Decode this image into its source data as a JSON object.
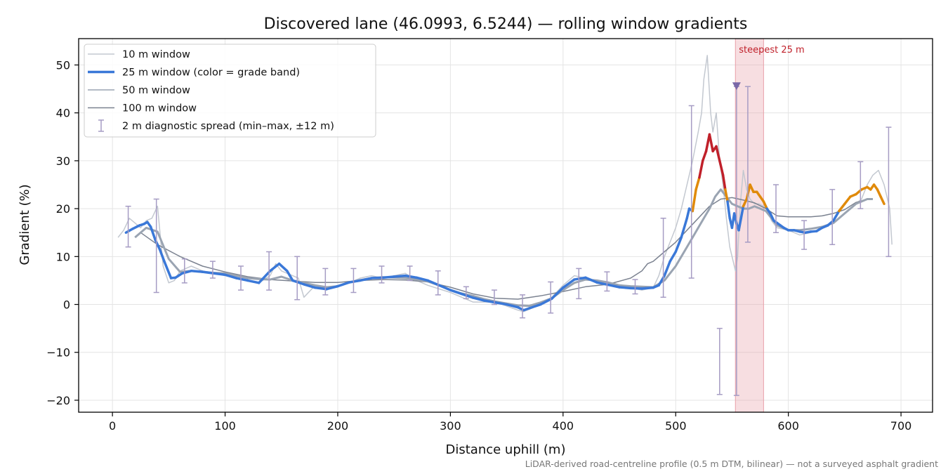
{
  "chart_data": {
    "type": "line",
    "title": "Discovered lane (46.0993, 6.5244) — rolling window gradients",
    "xlabel": "Distance uphill (m)",
    "ylabel": "Gradient (%)",
    "footnote": "LiDAR-derived road-centreline profile (0.5 m DTM, bilinear) — not a surveyed asphalt gradient",
    "xlim": [
      -30,
      728
    ],
    "ylim": [
      -22.5,
      55.5
    ],
    "xticks": [
      0,
      100,
      200,
      300,
      400,
      500,
      600,
      700
    ],
    "yticks": [
      -20,
      -10,
      0,
      10,
      20,
      30,
      40,
      50
    ],
    "grid": true,
    "legend_position": "top-left",
    "colors": {
      "w10": "#c3c8d0",
      "w50": "#9aa4b2",
      "w100": "#7b8290",
      "band_easy": "#3a78d8",
      "band_mid": "#e08a0a",
      "band_steep": "#c0202a",
      "errorbar": "#a69cc4",
      "marker": "#7a68a8",
      "highlight": "#e8a0a8"
    },
    "highlight": {
      "x0": 553,
      "x1": 578,
      "label": "steepest 25 m",
      "marker_x": 554,
      "marker_y": 45.5
    },
    "legend": [
      {
        "key": "w10",
        "label": "10 m window"
      },
      {
        "key": "w25",
        "label": "25 m window (color = grade band)"
      },
      {
        "key": "w50",
        "label": "50 m window"
      },
      {
        "key": "w100",
        "label": "100 m window"
      },
      {
        "key": "err",
        "label": "2 m diagnostic spread (min–max, ±12 m)"
      }
    ],
    "series": [
      {
        "name": "10 m window",
        "key": "w10",
        "x": [
          5,
          10,
          15,
          20,
          25,
          30,
          35,
          40,
          45,
          50,
          55,
          60,
          65,
          70,
          80,
          90,
          100,
          110,
          120,
          130,
          140,
          145,
          150,
          160,
          165,
          170,
          180,
          190,
          200,
          210,
          220,
          230,
          240,
          250,
          260,
          270,
          280,
          300,
          320,
          340,
          360,
          365,
          370,
          380,
          390,
          400,
          410,
          420,
          430,
          440,
          450,
          460,
          470,
          480,
          485,
          490,
          495,
          500,
          505,
          510,
          515,
          520,
          523,
          525,
          528,
          531,
          533,
          536,
          539,
          542,
          545,
          548,
          551,
          553,
          555,
          557,
          560,
          563,
          566,
          570,
          574,
          578,
          582,
          585,
          590,
          600,
          610,
          620,
          630,
          640,
          650,
          660,
          665,
          670,
          675,
          680,
          685,
          690,
          692
        ],
        "y": [
          14,
          15.5,
          18,
          17,
          16,
          17.5,
          18,
          20.5,
          8,
          4.5,
          5,
          7,
          7.5,
          8,
          7,
          6.5,
          6,
          5.5,
          5,
          4.5,
          6,
          8.5,
          7,
          6,
          5.5,
          1.5,
          4,
          3,
          4,
          4.5,
          5.5,
          6,
          5.5,
          6,
          6.5,
          5,
          4,
          2.5,
          0.5,
          0.5,
          -1.2,
          -1.5,
          -1,
          0,
          1.5,
          4,
          6,
          5.5,
          4.5,
          4,
          3.5,
          3.5,
          3,
          3.5,
          6,
          10,
          13,
          16,
          20,
          25,
          30,
          36,
          40,
          47,
          52,
          40,
          36,
          40,
          30,
          25,
          18,
          12,
          9,
          7,
          10,
          20,
          28,
          24,
          22,
          21,
          21,
          20.5,
          19.5,
          17.5,
          16,
          15.5,
          14.5,
          15,
          16,
          17,
          19,
          21,
          22,
          25,
          27,
          28,
          25,
          20,
          12.5
        ]
      },
      {
        "name": "25 m window",
        "key": "w25",
        "x": [
          12,
          18,
          24,
          28,
          31,
          34,
          38,
          42,
          46,
          52,
          56,
          62,
          70,
          80,
          90,
          100,
          110,
          120,
          130,
          140,
          148,
          155,
          160,
          170,
          180,
          190,
          200,
          210,
          220,
          230,
          240,
          250,
          260,
          270,
          280,
          290,
          300,
          310,
          320,
          330,
          340,
          350,
          360,
          365,
          370,
          380,
          390,
          400,
          410,
          420,
          430,
          440,
          450,
          460,
          470,
          480,
          485,
          490,
          495,
          500,
          505,
          510,
          512,
          515,
          518,
          521,
          524,
          527,
          530,
          533,
          536,
          539,
          542,
          544,
          546,
          548,
          550,
          552,
          554,
          556,
          558,
          560,
          563,
          566,
          569,
          572,
          575,
          578,
          581,
          584,
          587,
          590,
          593,
          596,
          600,
          605,
          610,
          615,
          620,
          625,
          630,
          635,
          640,
          645,
          650,
          655,
          660,
          665,
          670,
          673,
          676,
          679,
          682,
          685
        ],
        "y": [
          15,
          15.8,
          16.5,
          16.8,
          17.2,
          16.2,
          13.5,
          11.5,
          9,
          5.5,
          5.6,
          6.5,
          7,
          6.8,
          6.5,
          6.2,
          5.5,
          5,
          4.5,
          7,
          8.5,
          7,
          5,
          4.2,
          3.5,
          3.2,
          3.8,
          4.6,
          5,
          5.5,
          5.6,
          5.8,
          6,
          5.6,
          5,
          4,
          3,
          2.2,
          1.4,
          0.8,
          0.4,
          0,
          -0.6,
          -1.2,
          -0.8,
          0,
          1.2,
          3.5,
          5.2,
          5.6,
          4.6,
          4.1,
          3.6,
          3.4,
          3.3,
          3.5,
          4,
          6,
          9,
          11,
          14,
          18,
          20,
          19.5,
          24,
          26.5,
          30,
          32,
          35.5,
          32,
          33,
          30,
          27,
          24,
          21.5,
          18,
          16,
          19,
          17,
          15.5,
          18,
          20.5,
          22,
          25,
          23.5,
          23.5,
          22.5,
          21.5,
          20,
          19,
          17.5,
          17,
          16.5,
          16,
          15.5,
          15.5,
          15.2,
          15,
          15.2,
          15.3,
          16,
          16.5,
          17.5,
          19.5,
          21,
          22.5,
          23,
          24,
          24.5,
          24,
          25,
          24,
          22.5,
          21
        ]
      },
      {
        "name": "50 m window",
        "key": "w50",
        "x": [
          20,
          30,
          40,
          50,
          60,
          70,
          80,
          90,
          100,
          110,
          120,
          130,
          140,
          150,
          160,
          170,
          180,
          190,
          200,
          210,
          220,
          230,
          240,
          250,
          260,
          270,
          280,
          290,
          300,
          310,
          320,
          330,
          340,
          350,
          360,
          370,
          380,
          390,
          400,
          410,
          420,
          430,
          440,
          450,
          460,
          470,
          480,
          490,
          500,
          505,
          510,
          515,
          520,
          525,
          530,
          535,
          540,
          545,
          550,
          555,
          560,
          565,
          570,
          575,
          580,
          590,
          600,
          610,
          620,
          630,
          640,
          650,
          660,
          670,
          675
        ],
        "y": [
          14,
          16,
          15.2,
          9.5,
          6.8,
          7,
          6.8,
          6.6,
          6.5,
          6,
          5.5,
          5.3,
          5.2,
          5.8,
          5,
          4.5,
          4,
          3.6,
          3.8,
          4.6,
          5.1,
          5.5,
          5.7,
          5.6,
          5.5,
          5.2,
          4.8,
          4,
          3,
          2.3,
          1.8,
          1.1,
          0.6,
          0.2,
          -0.2,
          -0.3,
          0.4,
          1.3,
          3,
          4.5,
          5.2,
          5,
          4.6,
          4,
          3.8,
          3.7,
          3.6,
          5,
          8,
          10,
          12,
          14,
          16,
          18,
          20,
          22.5,
          24,
          22.5,
          21,
          20.5,
          20,
          20,
          20.5,
          20,
          19.5,
          16.5,
          15.5,
          15.5,
          15.8,
          16.2,
          17,
          19,
          21,
          22,
          22
        ]
      },
      {
        "name": "100 m window",
        "key": "w100",
        "x": [
          25,
          40,
          60,
          80,
          100,
          120,
          140,
          160,
          180,
          200,
          220,
          240,
          260,
          280,
          300,
          320,
          340,
          360,
          380,
          400,
          420,
          440,
          460,
          470,
          475,
          480,
          490,
          500,
          510,
          520,
          530,
          540,
          550,
          560,
          570,
          580,
          590,
          600,
          610,
          620,
          630,
          640,
          650,
          660,
          670,
          675
        ],
        "y": [
          15,
          12.5,
          10,
          8,
          6.8,
          5.8,
          5.2,
          4.9,
          4.6,
          4.6,
          5,
          5.2,
          5.1,
          4.7,
          3.6,
          2.2,
          1.3,
          1.1,
          1.8,
          2.7,
          3.7,
          4.2,
          5.5,
          7,
          8.5,
          9,
          11,
          13,
          15.5,
          18,
          20.5,
          22,
          22.3,
          21.8,
          21.2,
          20,
          18.5,
          18.3,
          18.3,
          18.3,
          18.5,
          19,
          19.8,
          21.3,
          22,
          22
        ]
      },
      {
        "name": "2 m diagnostic spread (min–max, ±12 m)",
        "key": "err",
        "x": [
          14,
          39,
          64,
          89,
          114,
          139,
          164,
          189,
          214,
          239,
          264,
          289,
          314,
          339,
          364,
          389,
          414,
          439,
          464,
          489,
          514,
          539,
          554,
          564,
          589,
          614,
          639,
          664,
          689
        ],
        "low": [
          12,
          2.5,
          4.5,
          5.5,
          3,
          3,
          1,
          2,
          2.5,
          4.5,
          5,
          2,
          1.2,
          0,
          -2.8,
          -1.8,
          1.2,
          2.8,
          2.2,
          1.5,
          5.5,
          -18.8,
          -19,
          13,
          15,
          11.5,
          12.5,
          20,
          10
        ],
        "high": [
          20.5,
          22,
          9.5,
          9,
          8,
          11,
          10,
          7.5,
          7.5,
          8,
          8,
          7,
          3.7,
          3,
          2,
          4.7,
          7.5,
          6.8,
          5.2,
          18,
          41.5,
          -5,
          45.5,
          45.5,
          25,
          17.5,
          24,
          29.8,
          37
        ]
      }
    ]
  }
}
